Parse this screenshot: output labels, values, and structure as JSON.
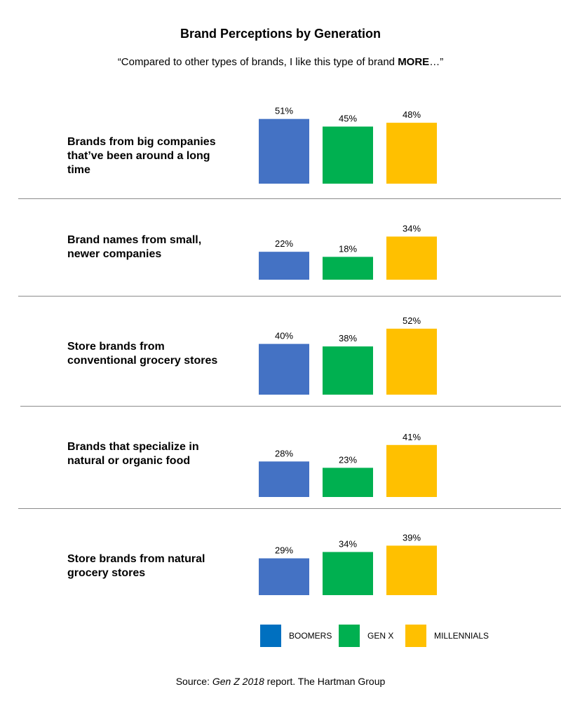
{
  "chart_data": {
    "type": "bar",
    "title": "Brand Perceptions by Generation",
    "subtitle_prefix": "“Compared to other types of brands, I like this type of brand ",
    "subtitle_bold": "MORE",
    "subtitle_suffix": "…”",
    "categories": [
      "Brands from big companies that’ve been around a long time",
      "Brand names from small, newer companies",
      "Store brands from conventional grocery stores",
      "Brands that specialize in natural or organic food",
      "Store brands from natural grocery stores"
    ],
    "series": [
      {
        "name": "BOOMERS",
        "color": "#4472C4",
        "legend_color": "#0070C0",
        "values": [
          51,
          22,
          40,
          28,
          29
        ],
        "labels": [
          "51%",
          "22%",
          "40%",
          "28%",
          "29%"
        ]
      },
      {
        "name": "GEN X",
        "color": "#00B050",
        "legend_color": "#00B050",
        "values": [
          45,
          18,
          38,
          23,
          34
        ],
        "labels": [
          "45%",
          "18%",
          "38%",
          "23%",
          "34%"
        ]
      },
      {
        "name": "MILLENNIALS",
        "color": "#FFC000",
        "legend_color": "#FFC000",
        "values": [
          48,
          34,
          52,
          41,
          39
        ],
        "labels": [
          "48%",
          "34%",
          "52%",
          "41%",
          "39%"
        ]
      }
    ],
    "unit": "%",
    "legend_position": "bottom"
  },
  "source": {
    "prefix": "Source: ",
    "italic": "Gen Z 2018",
    "suffix": " report. The Hartman Group"
  }
}
